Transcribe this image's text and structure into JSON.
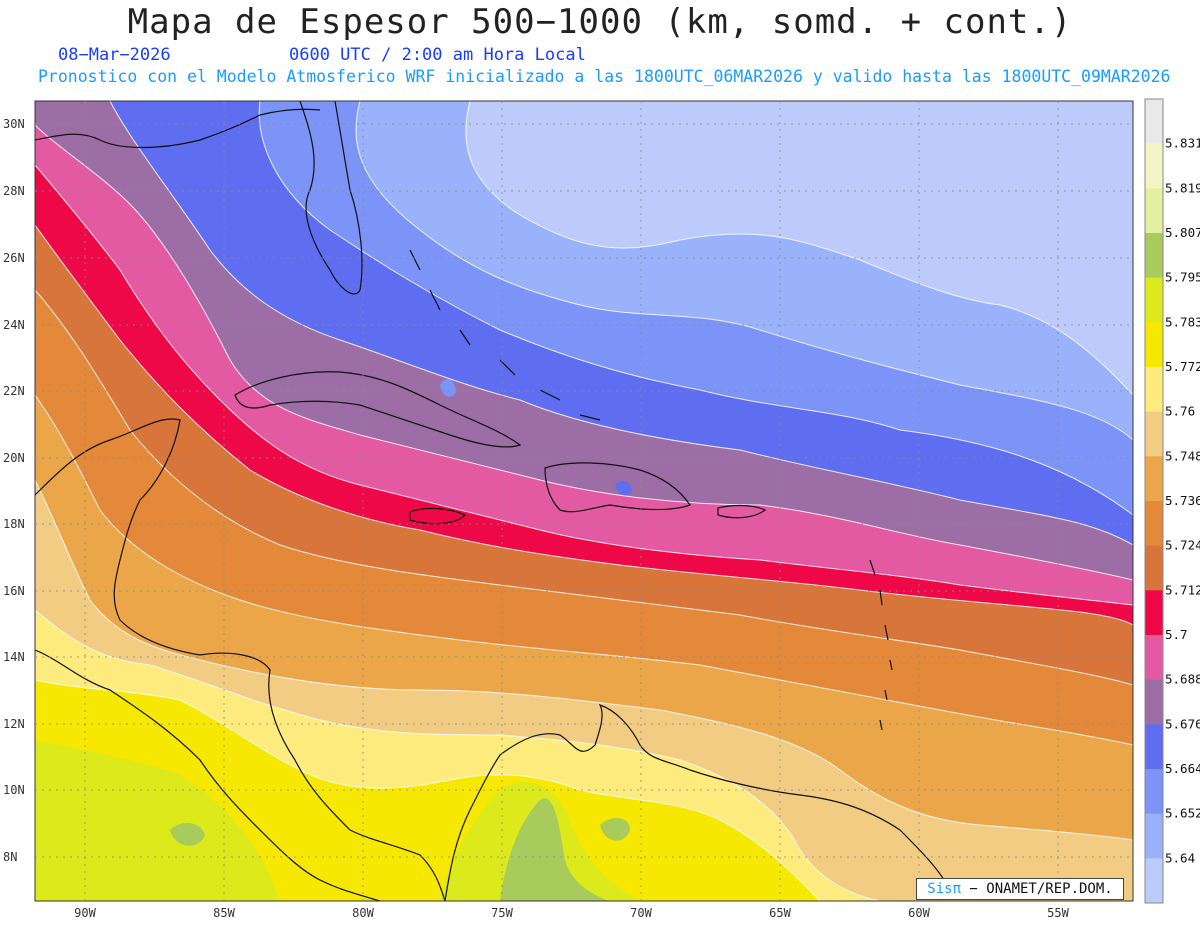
{
  "header": {
    "title": "Mapa de Espesor 500−1000 (km, somd. + cont.)",
    "date": "08−Mar−2026",
    "time": "0600 UTC / 2:00 am Hora Local",
    "forecast_line": "Pronostico con el Modelo Atmosferico WRF inicializado a las 1800UTC_06MAR2026 y valido hasta las  1800UTC_09MAR2026"
  },
  "axes": {
    "lat_labels": [
      "30N",
      "28N",
      "26N",
      "24N",
      "22N",
      "20N",
      "18N",
      "16N",
      "14N",
      "12N",
      "10N",
      "8N"
    ],
    "lon_labels": [
      "90W",
      "85W",
      "80W",
      "75W",
      "70W",
      "65W",
      "60W",
      "55W"
    ]
  },
  "colorbar": {
    "levels": [
      "5.831",
      "5.819",
      "5.807",
      "5.795",
      "5.783",
      "5.772",
      "5.76",
      "5.748",
      "5.736",
      "5.724",
      "5.712",
      "5.7",
      "5.688",
      "5.676",
      "5.664",
      "5.652",
      "5.64"
    ],
    "colors": [
      "#e9e9e9",
      "#f2f6c6",
      "#e2f0a0",
      "#a8cc5c",
      "#dcea1c",
      "#f6e800",
      "#fdeb7e",
      "#f2cc82",
      "#eca64a",
      "#e4893a",
      "#d8753a",
      "#ee0848",
      "#e45aa2",
      "#9d6ea6",
      "#5f6ef0",
      "#7c93f8",
      "#99b2fb",
      "#bccbfc"
    ]
  },
  "credit": {
    "sis": "Sisπ",
    "rest": " − ONAMET/REP.DOM."
  }
}
